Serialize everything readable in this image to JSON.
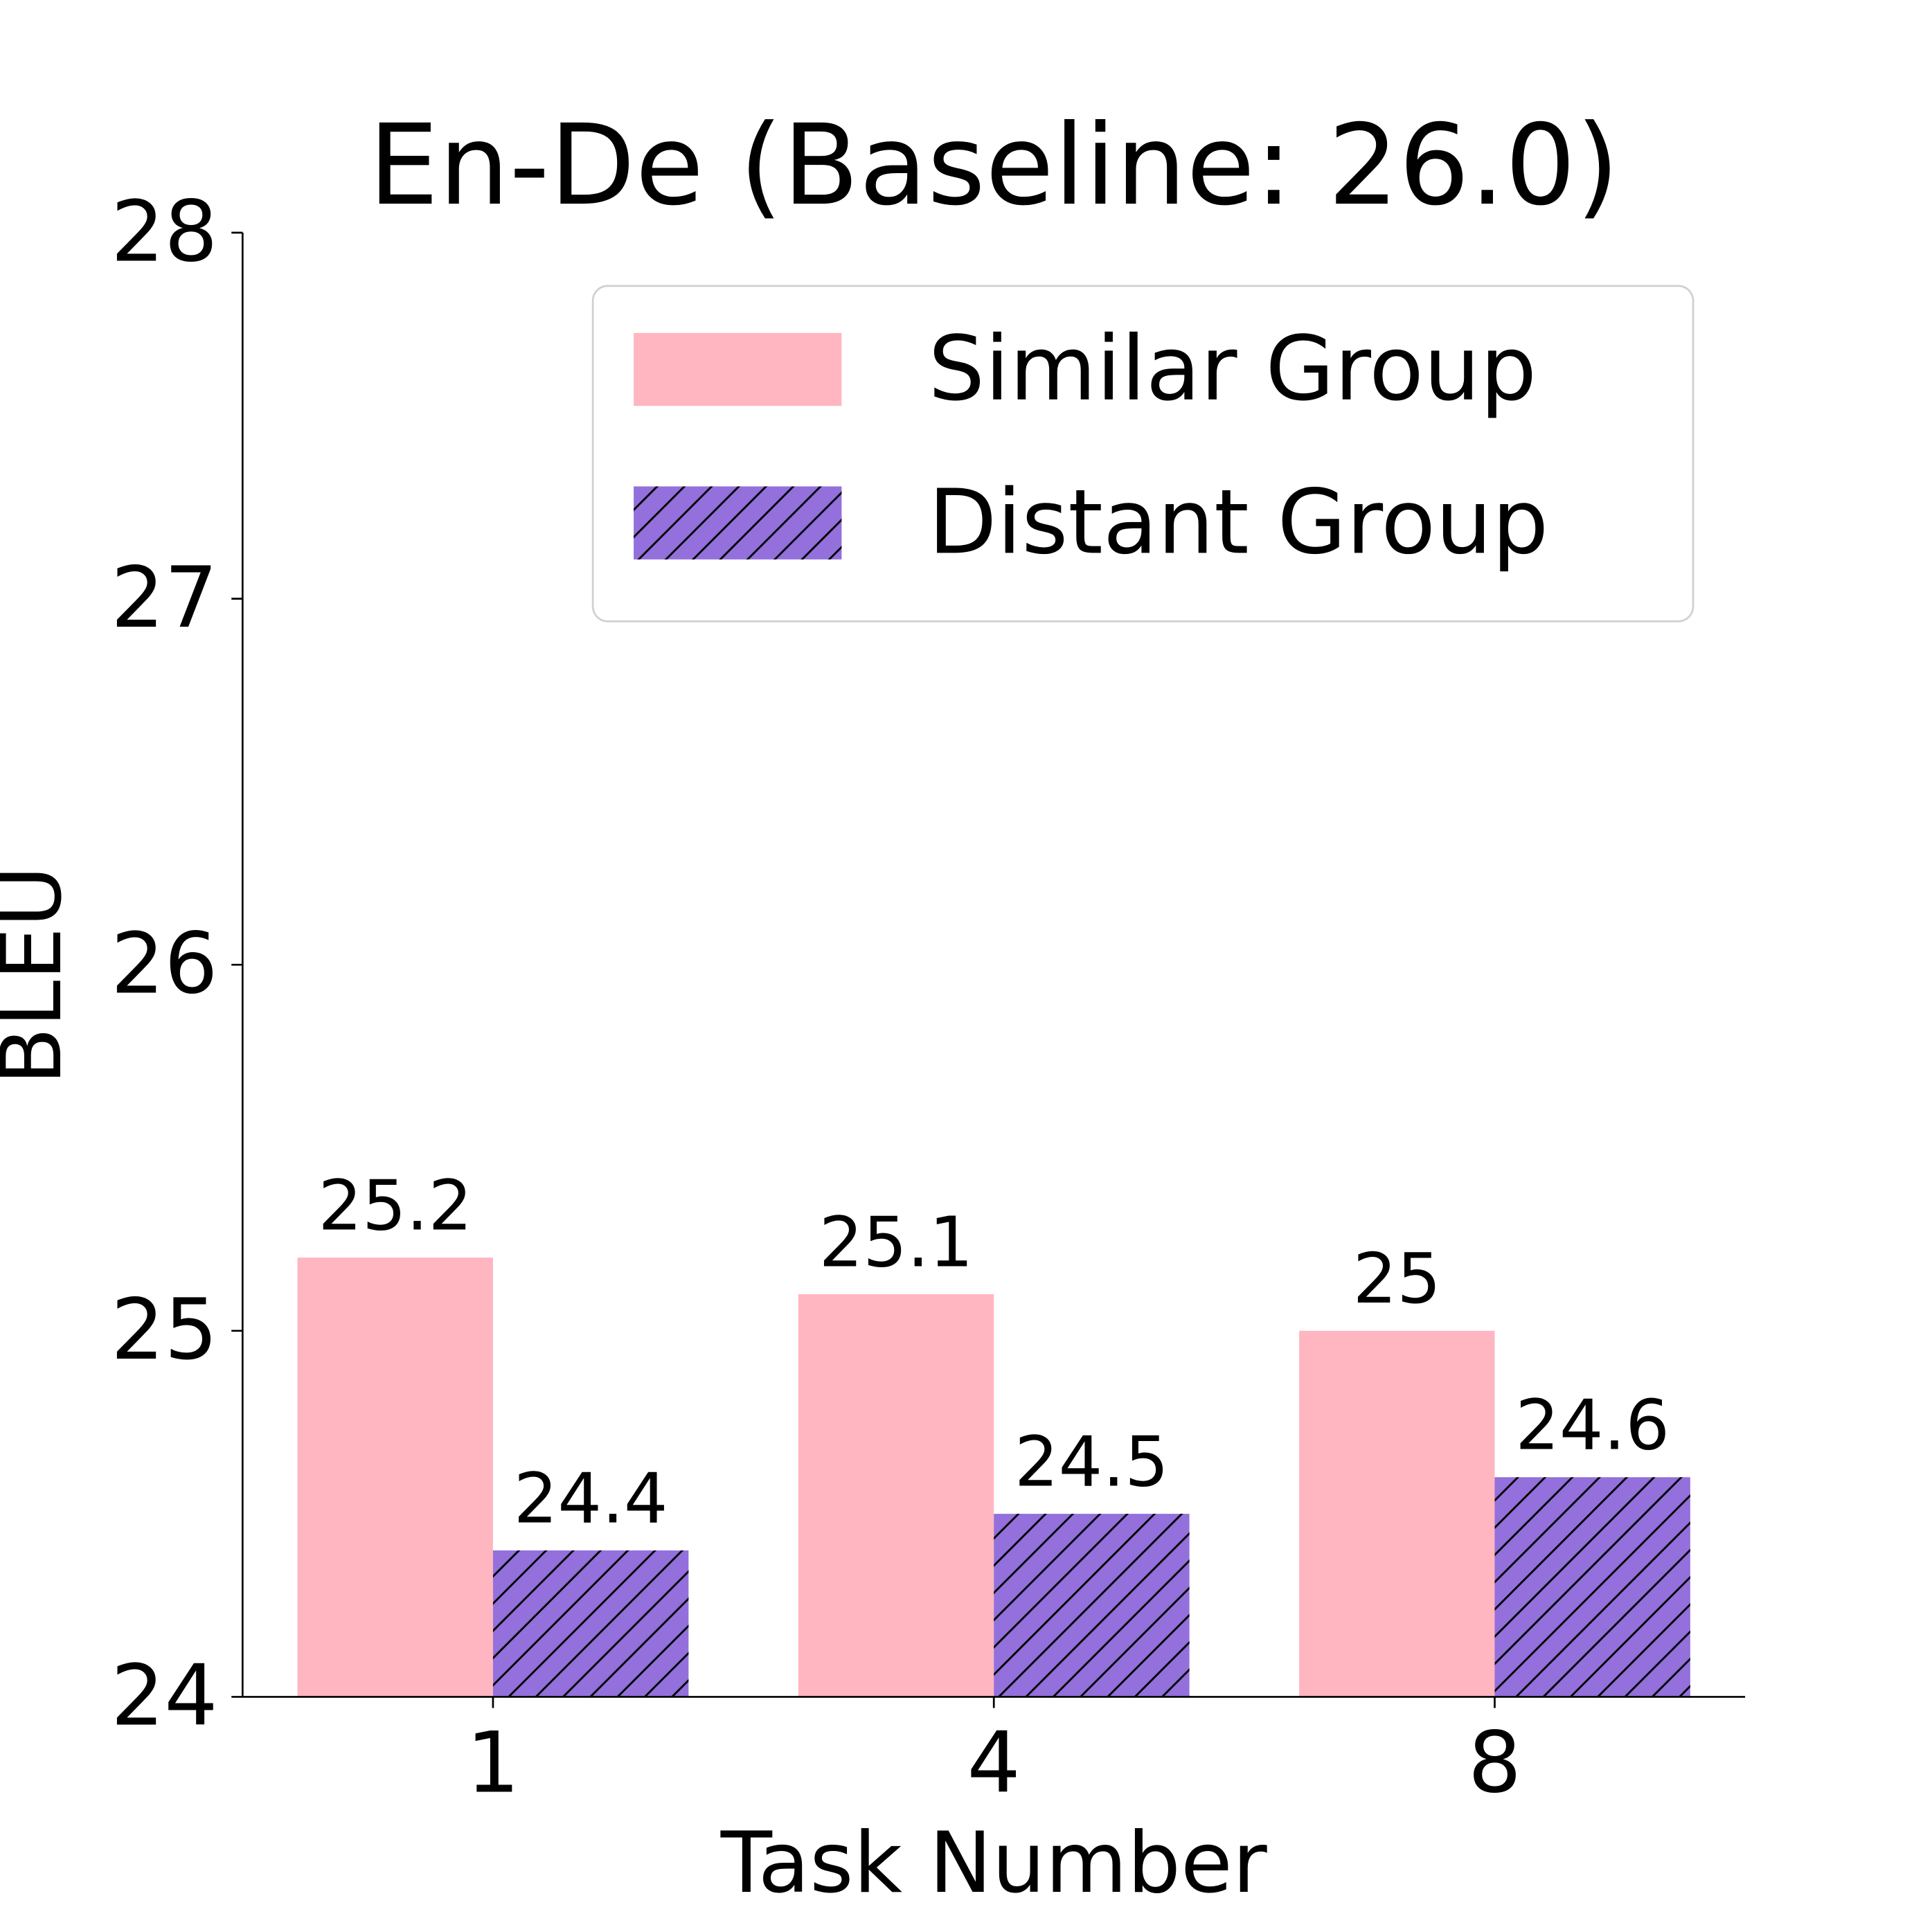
{
  "chart_data": {
    "type": "bar",
    "title": "En-De (Baseline: 26.0)",
    "x_label": "Task Number",
    "y_label": "BLEU",
    "categories": [
      "1",
      "4",
      "8"
    ],
    "series": [
      {
        "name": "Similar Group",
        "color": "#ffb6c1",
        "values": [
          25.2,
          25.1,
          25
        ]
      },
      {
        "name": "Distant Group",
        "color": "#9370db",
        "hatch": "//",
        "values": [
          24.4,
          24.5,
          24.6
        ]
      }
    ],
    "ylim": [
      24,
      28
    ],
    "yticks": [
      24,
      25,
      26,
      27,
      28
    ],
    "legend": "upper right",
    "grid": false
  }
}
